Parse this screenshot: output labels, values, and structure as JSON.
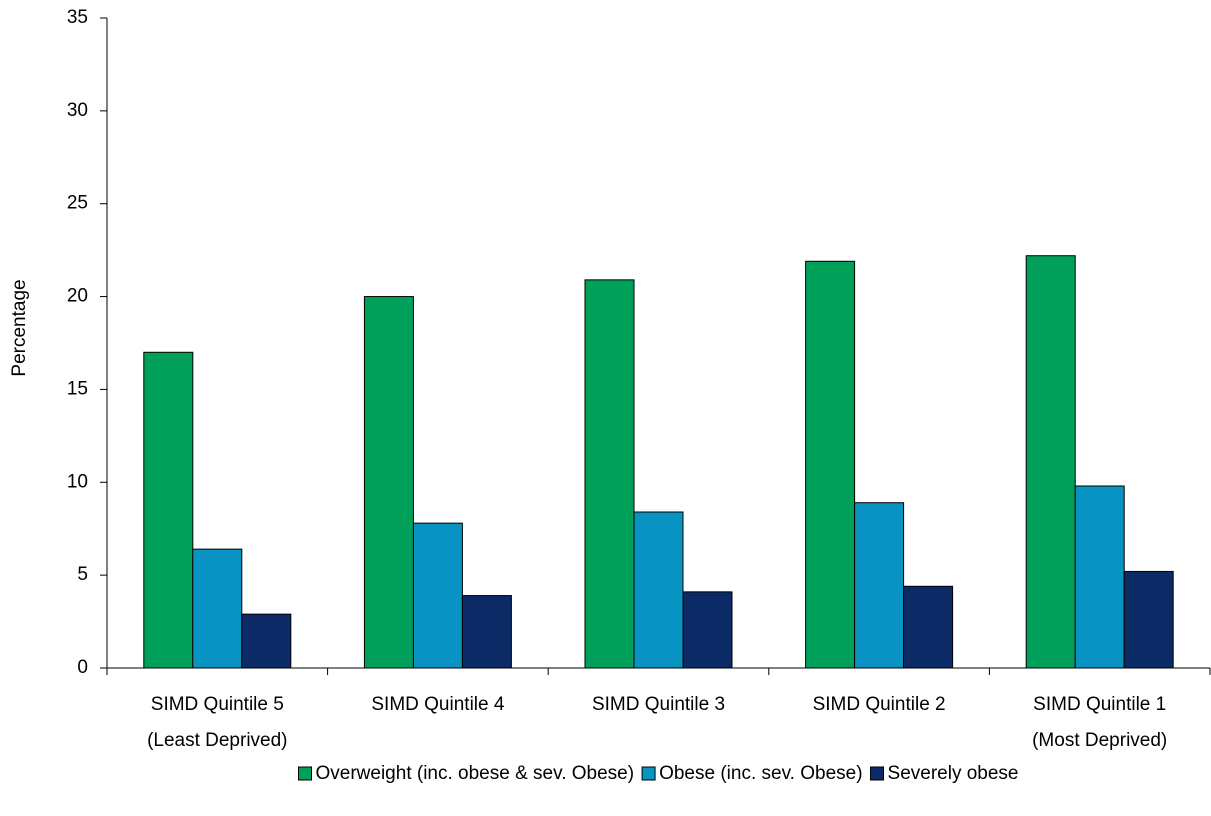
{
  "chart_data": {
    "type": "bar",
    "y_label": "Percentage",
    "categories": [
      [
        "SIMD Quintile 5",
        "(Least Deprived)"
      ],
      [
        "SIMD Quintile 4"
      ],
      [
        "SIMD Quintile 3"
      ],
      [
        "SIMD Quintile 2"
      ],
      [
        "SIMD Quintile 1",
        "(Most Deprived)"
      ]
    ],
    "series": [
      {
        "name": "Overweight (inc. obese & sev. Obese)",
        "color": "#00a05a",
        "values": [
          17.0,
          20.0,
          20.9,
          21.9,
          22.2
        ]
      },
      {
        "name": "Obese (inc. sev. Obese)",
        "color": "#0893c3",
        "values": [
          6.4,
          7.8,
          8.4,
          8.9,
          9.8
        ]
      },
      {
        "name": "Severely obese",
        "color": "#0c2a66",
        "values": [
          2.9,
          3.9,
          4.1,
          4.4,
          5.2
        ]
      }
    ],
    "ylim": [
      0,
      35
    ],
    "yticks": [
      0,
      5,
      10,
      15,
      20,
      25,
      30,
      35
    ],
    "grid": false,
    "legend": "bottom"
  }
}
